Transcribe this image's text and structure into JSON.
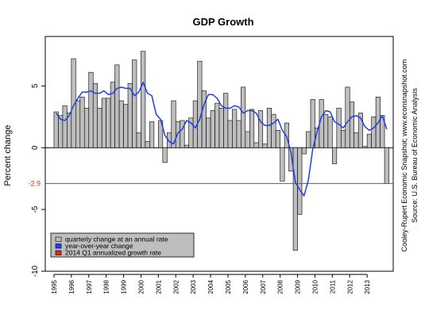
{
  "chart_data": {
    "type": "bar",
    "title": "GDP Growth",
    "ylabel": "Percent change",
    "ylim": [
      -10,
      9
    ],
    "yticks": [
      -10,
      -5,
      0,
      5
    ],
    "x_range": [
      1994.5,
      2014.5
    ],
    "year_labels": [
      "1995",
      "1996",
      "1997",
      "1998",
      "1999",
      "2000",
      "2001",
      "2002",
      "2003",
      "2004",
      "2005",
      "2006",
      "2007",
      "2008",
      "2009",
      "2010",
      "2011",
      "2012",
      "2013"
    ],
    "grid": false,
    "legend_position": "bottom-left",
    "colors": {
      "bars": "#bebebe",
      "bar_edge": "#000000",
      "line": "#1f3fe6",
      "reference": "#cc3311",
      "legend_bg": "#bebebe"
    },
    "series": [
      {
        "name": "quarterly change at an annual rate",
        "kind": "bar",
        "start": "1995Q1",
        "values": [
          2.9,
          2.6,
          3.4,
          2.8,
          7.2,
          3.8,
          4.1,
          3.2,
          6.1,
          5.2,
          3.2,
          4.0,
          4.0,
          5.3,
          6.7,
          3.8,
          3.5,
          5.2,
          7.1,
          1.2,
          7.8,
          0.5,
          2.1,
          0.0,
          2.2,
          -1.2,
          1.2,
          3.8,
          2.1,
          2.2,
          0.2,
          2.4,
          3.8,
          7.0,
          4.6,
          2.4,
          3.0,
          3.6,
          3.2,
          4.4,
          2.2,
          3.1,
          2.2,
          4.9,
          1.3,
          3.1,
          0.4,
          3.0,
          0.3,
          3.2,
          2.7,
          1.4,
          -2.7,
          2.0,
          -1.9,
          -8.3,
          -5.4,
          -0.5,
          1.3,
          3.9,
          1.6,
          3.9,
          2.7,
          2.5,
          -1.3,
          3.2,
          1.4,
          4.9,
          3.7,
          1.2,
          2.8,
          0.1,
          1.1,
          2.5,
          4.1,
          2.6,
          -2.9
        ]
      },
      {
        "name": "year-over-year change",
        "kind": "line",
        "start": "1995Q1",
        "values": [
          2.8,
          2.3,
          2.2,
          2.6,
          3.4,
          4.0,
          4.5,
          4.5,
          4.6,
          4.4,
          4.4,
          4.6,
          4.3,
          4.4,
          4.8,
          4.9,
          4.8,
          4.8,
          4.2,
          4.5,
          5.3,
          4.4,
          4.2,
          2.7,
          2.3,
          1.0,
          0.5,
          0.3,
          1.2,
          1.5,
          2.2,
          2.0,
          1.6,
          2.3,
          3.5,
          4.3,
          4.3,
          4.0,
          3.4,
          3.2,
          3.2,
          3.4,
          3.3,
          2.8,
          3.0,
          3.0,
          2.8,
          2.1,
          1.8,
          1.8,
          2.0,
          2.3,
          1.4,
          0.9,
          -0.4,
          -2.8,
          -3.4,
          -3.9,
          -2.6,
          -0.1,
          1.3,
          2.5,
          3.0,
          2.9,
          2.1,
          1.9,
          1.6,
          2.1,
          2.5,
          2.6,
          2.4,
          1.7,
          1.4,
          1.6,
          2.0,
          2.6,
          1.5
        ]
      },
      {
        "name": "2014 Q1 annualized growth rate",
        "kind": "reference",
        "value": -2.9,
        "label": "-2.9"
      }
    ],
    "source_lines": [
      "Cooley-Rupert Economic Snapshot; www.econsnapshot.com",
      "Source: U.S. Bureau of Economic Analysis"
    ]
  }
}
